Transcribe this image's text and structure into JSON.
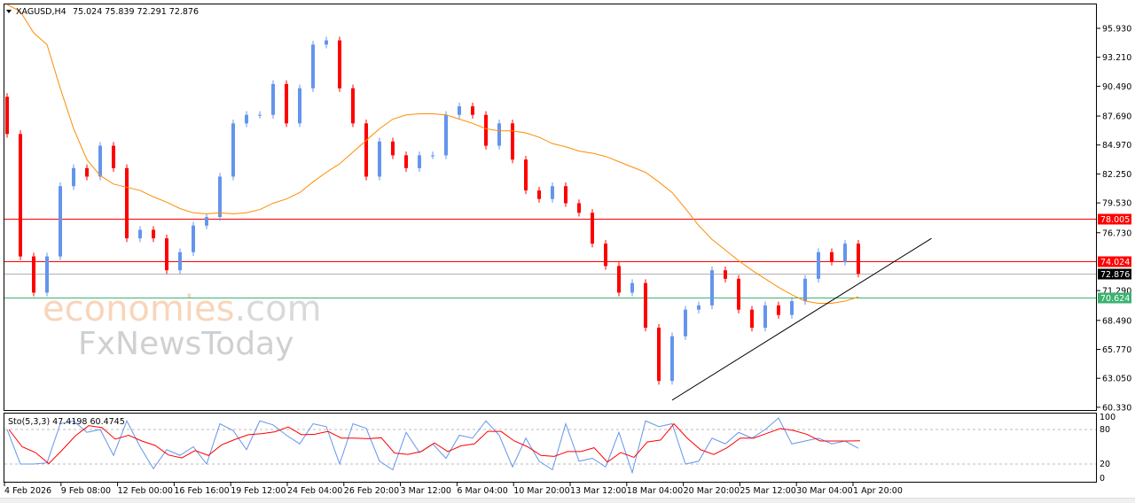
{
  "header": {
    "symbol": "XAGUSD,H4",
    "ohlc": "75.024 75.839 72.291 72.876",
    "menu_icon": "triangle-down-icon"
  },
  "logo": {
    "line1a": "economies",
    "line1b": ".com",
    "line2": "FxNewsToday"
  },
  "colors": {
    "bull": "#6495ed",
    "bear": "#ff0000",
    "ma": "#ff8c00",
    "level_red": "#ff0000",
    "level_current": "#b0b0b0",
    "level_green": "#3cb371",
    "stoch_main": "#6495ed",
    "stoch_signal": "#ff0000",
    "trendline": "#000000"
  },
  "chart_data": [
    {
      "type": "candlestick",
      "title": "XAGUSD,H4",
      "ylim": [
        60.33,
        95.93
      ],
      "y_ticks": [
        "95.930",
        "93.210",
        "90.490",
        "87.690",
        "84.970",
        "82.250",
        "79.530",
        "76.730",
        "71.290",
        "68.490",
        "65.770",
        "63.050",
        "60.330"
      ],
      "x_ticks": [
        "4 Feb 2026",
        "9 Feb 08:00",
        "12 Feb 00:00",
        "16 Feb 16:00",
        "19 Feb 12:00",
        "24 Feb 04:00",
        "26 Feb 20:00",
        "3 Mar 12:00",
        "6 Mar 04:00",
        "10 Mar 20:00",
        "13 Mar 12:00",
        "18 Mar 04:00",
        "20 Mar 20:00",
        "25 Mar 12:00",
        "30 Mar 04:00",
        "1 Apr 20:00"
      ],
      "first_open": 89.5,
      "closes": [
        86,
        74.5,
        71.1,
        74.5,
        81.1,
        82.8,
        82,
        84.9,
        82.8,
        76.2,
        77,
        76.2,
        73.2,
        74.9,
        77.4,
        78.2,
        82,
        87,
        87.8,
        87.8,
        90.7,
        87,
        90.3,
        94.4,
        94.8,
        90.3,
        87,
        82,
        85.3,
        84,
        82.8,
        84,
        84,
        87.8,
        88.6,
        87.8,
        84.9,
        87,
        83.6,
        80.7,
        79.9,
        81.1,
        79.5,
        78.6,
        75.7,
        73.6,
        71.1,
        72,
        67.8,
        62.8,
        67,
        69.5,
        69.9,
        73.2,
        72.4,
        69.5,
        67.8,
        69.9,
        69,
        70.3,
        72.4,
        74.9,
        74,
        75.7,
        72.876
      ],
      "moving_average": [
        98.5,
        97.5,
        95.5,
        94.4,
        90.3,
        86.5,
        83.6,
        82.1,
        81.3,
        81,
        80.7,
        80.1,
        79.6,
        79,
        78.6,
        78.5,
        78.6,
        78.5,
        78.6,
        78.9,
        79.5,
        79.9,
        80.5,
        81.5,
        82.4,
        83.2,
        84.3,
        85.4,
        86.5,
        87.4,
        87.8,
        87.9,
        87.9,
        87.8,
        87.4,
        87,
        86.5,
        86.3,
        86.3,
        86.1,
        85.7,
        85.1,
        84.8,
        84.4,
        84.2,
        83.9,
        83.4,
        82.9,
        82.4,
        81.5,
        80.5,
        79,
        77.4,
        76.1,
        75.1,
        74.1,
        73.2,
        72.4,
        71.6,
        70.9,
        70.3,
        70.1,
        70.1,
        70.3,
        70.7
      ],
      "levels": [
        {
          "label": "78.005",
          "value": 78.005,
          "color": "#ff0000"
        },
        {
          "label": "74.024",
          "value": 74.024,
          "color": "#ff0000"
        },
        {
          "label": "72.876",
          "value": 72.876,
          "color": "#000000",
          "line": "#b0b0b0"
        },
        {
          "label": "70.624",
          "value": 70.624,
          "color": "#3cb371"
        }
      ],
      "trendline": {
        "from": {
          "candle": 50,
          "price": 61.0
        },
        "to": {
          "candle": 69.5,
          "price": 76.2
        }
      }
    },
    {
      "type": "line",
      "title": "Sto(5,3,3) 47.4198 60.4745",
      "ylim": [
        0,
        100
      ],
      "y_ticks": [
        "100",
        "80",
        "20",
        "0"
      ],
      "levels": [
        80,
        20
      ],
      "main": [
        80,
        20,
        20,
        22,
        90,
        95,
        75,
        80,
        35,
        95,
        50,
        12,
        45,
        35,
        50,
        20,
        90,
        78,
        45,
        95,
        88,
        70,
        55,
        90,
        85,
        20,
        90,
        82,
        25,
        10,
        75,
        40,
        55,
        30,
        70,
        65,
        95,
        70,
        15,
        65,
        25,
        10,
        90,
        25,
        30,
        15,
        75,
        5,
        95,
        85,
        90,
        20,
        25,
        65,
        55,
        75,
        65,
        80,
        100,
        55,
        60,
        65,
        55,
        60,
        47.4198
      ],
      "signal_last": 60.4745
    }
  ]
}
